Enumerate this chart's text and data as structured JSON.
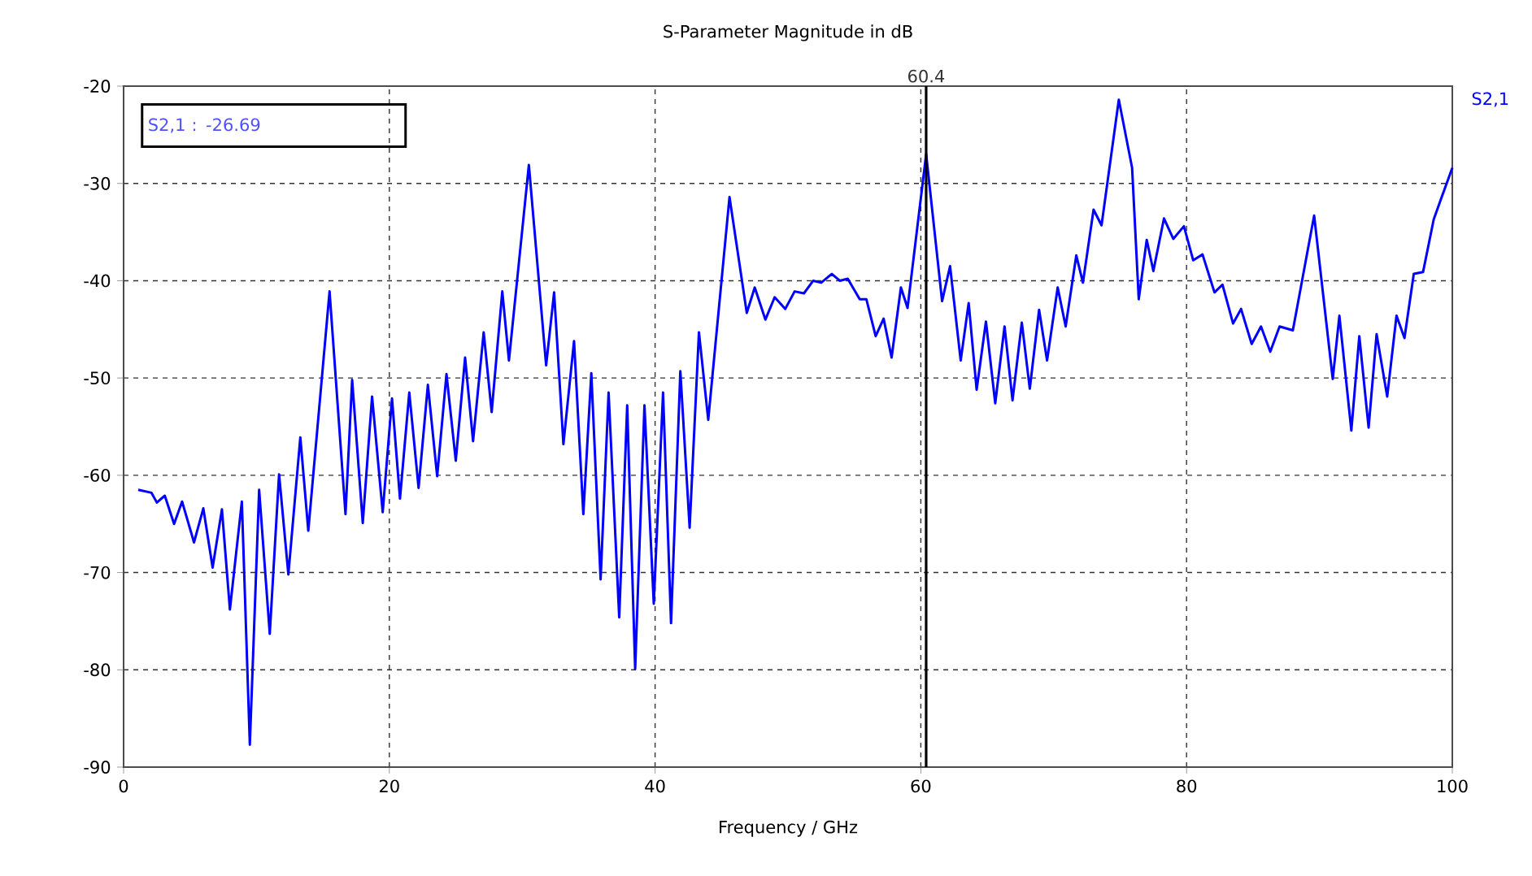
{
  "chart_data": {
    "type": "line",
    "title": "S-Parameter Magnitude in dB",
    "xlabel": "Frequency / GHz",
    "xlim": [
      0,
      100
    ],
    "xticks": [
      0,
      20,
      40,
      60,
      80,
      100
    ],
    "ylim": [
      -90,
      -20
    ],
    "yticks": [
      -90,
      -80,
      -70,
      -60,
      -50,
      -40,
      -30,
      -20
    ],
    "grid": true,
    "legend": "top right",
    "marker": "none",
    "line_style": "solid",
    "annotations": [
      "S2,1 : -26.69"
    ],
    "ref_lines": [
      {
        "axis": "x",
        "value": 60.4,
        "label": "60.4",
        "color": "#000000"
      }
    ],
    "series": [
      {
        "name": "S2,1",
        "color": "#0000ff",
        "x": [
          1.1,
          2.1,
          2.5,
          3.1,
          3.8,
          4.4,
          5.3,
          6.0,
          6.7,
          7.4,
          8.0,
          8.9,
          9.5,
          10.2,
          11.0,
          11.7,
          12.4,
          13.3,
          13.9,
          15.5,
          16.7,
          17.2,
          18.0,
          18.7,
          19.5,
          20.2,
          20.8,
          21.5,
          22.2,
          22.9,
          23.6,
          24.3,
          25.0,
          25.7,
          26.3,
          27.1,
          27.7,
          28.5,
          29.0,
          30.5,
          31.8,
          32.4,
          33.1,
          33.9,
          34.6,
          35.2,
          35.9,
          36.5,
          37.3,
          37.9,
          38.5,
          39.2,
          39.9,
          40.6,
          41.2,
          41.9,
          42.6,
          43.3,
          44.0,
          45.6,
          46.9,
          47.5,
          48.3,
          49.0,
          49.8,
          50.5,
          51.2,
          51.9,
          52.5,
          53.3,
          53.9,
          54.5,
          55.4,
          55.9,
          56.6,
          57.2,
          57.8,
          58.5,
          59.0,
          60.4,
          61.6,
          62.2,
          63.0,
          63.6,
          64.2,
          64.9,
          65.6,
          66.3,
          66.9,
          67.6,
          68.2,
          68.9,
          69.5,
          70.3,
          70.9,
          71.7,
          72.2,
          73.0,
          73.6,
          74.9,
          75.9,
          76.4,
          77.0,
          77.5,
          78.3,
          79.0,
          79.8,
          80.5,
          81.2,
          82.1,
          82.7,
          83.5,
          84.1,
          84.9,
          85.6,
          86.3,
          87.0,
          88.0,
          89.6,
          91.0,
          91.5,
          92.4,
          93.0,
          93.7,
          94.3,
          95.1,
          95.8,
          96.4,
          97.1,
          97.8,
          98.6,
          99.2,
          100.0
        ],
        "values": [
          -61.5,
          -61.8,
          -62.8,
          -62.1,
          -65.0,
          -62.7,
          -66.9,
          -63.4,
          -69.5,
          -63.5,
          -73.8,
          -62.7,
          -87.7,
          -61.5,
          -76.3,
          -59.9,
          -70.2,
          -56.1,
          -65.7,
          -41.1,
          -64.0,
          -50.2,
          -64.9,
          -51.9,
          -63.8,
          -52.1,
          -62.4,
          -51.5,
          -61.3,
          -50.7,
          -60.1,
          -49.6,
          -58.5,
          -47.9,
          -56.5,
          -45.3,
          -53.5,
          -41.1,
          -48.2,
          -28.1,
          -48.7,
          -41.2,
          -56.8,
          -46.2,
          -64.0,
          -49.5,
          -70.7,
          -51.5,
          -74.6,
          -52.8,
          -79.9,
          -52.8,
          -73.2,
          -51.5,
          -75.2,
          -49.3,
          -65.4,
          -45.3,
          -54.3,
          -31.4,
          -43.3,
          -40.7,
          -44.0,
          -41.7,
          -42.9,
          -41.1,
          -41.3,
          -40.0,
          -40.2,
          -39.3,
          -40.0,
          -39.8,
          -41.9,
          -41.9,
          -45.7,
          -43.9,
          -47.9,
          -40.7,
          -42.8,
          -27.0,
          -42.1,
          -38.5,
          -48.2,
          -42.3,
          -51.2,
          -44.2,
          -52.6,
          -44.7,
          -52.3,
          -44.3,
          -51.1,
          -43.0,
          -48.2,
          -40.7,
          -44.7,
          -37.4,
          -40.2,
          -32.7,
          -34.3,
          -21.4,
          -28.4,
          -41.9,
          -35.8,
          -39.0,
          -33.6,
          -35.7,
          -34.4,
          -37.9,
          -37.3,
          -41.2,
          -40.4,
          -44.4,
          -42.9,
          -46.5,
          -44.7,
          -47.3,
          -44.7,
          -45.1,
          -33.3,
          -50.1,
          -43.6,
          -55.4,
          -45.7,
          -55.1,
          -45.5,
          -51.9,
          -43.6,
          -45.9,
          -39.3,
          -39.1,
          -33.7,
          -31.4,
          -28.4
        ]
      }
    ]
  }
}
